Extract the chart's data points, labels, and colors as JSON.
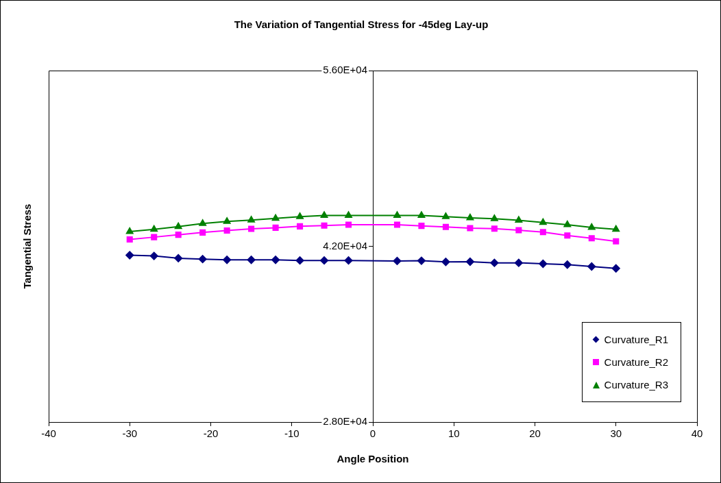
{
  "chart_data": {
    "type": "line",
    "title": "The Variation of Tangential Stress for -45deg Lay-up",
    "xlabel": "Angle Position",
    "ylabel": "Tangential Stress",
    "x": [
      -30,
      -27,
      -24,
      -21,
      -18,
      -15,
      -12,
      -9,
      -6,
      -3,
      3,
      6,
      9,
      12,
      15,
      18,
      21,
      24,
      27,
      30
    ],
    "xlim": [
      -40,
      40
    ],
    "xticks": [
      -40,
      -30,
      -20,
      -10,
      0,
      10,
      20,
      30,
      40
    ],
    "ylim": [
      28000,
      56000
    ],
    "yticks": [
      {
        "value": 28000,
        "label": "2.80E+04"
      },
      {
        "value": 42000,
        "label": "4.20E+04"
      },
      {
        "value": 56000,
        "label": "5.60E+04"
      }
    ],
    "grid": false,
    "legend": "bottom right",
    "line_style": "solid",
    "series": [
      {
        "name": "Curvature_R1",
        "color": "#000080",
        "marker": "diamond",
        "values": [
          41290,
          41230,
          41050,
          40980,
          40920,
          40920,
          40920,
          40870,
          40870,
          40870,
          40830,
          40850,
          40760,
          40770,
          40680,
          40680,
          40610,
          40540,
          40390,
          40240
        ]
      },
      {
        "name": "Curvature_R2",
        "color": "#ff00ff",
        "marker": "square",
        "values": [
          42550,
          42730,
          42920,
          43100,
          43260,
          43390,
          43480,
          43590,
          43650,
          43720,
          43720,
          43630,
          43540,
          43450,
          43410,
          43280,
          43130,
          42860,
          42640,
          42400
        ]
      },
      {
        "name": "Curvature_R3",
        "color": "#008000",
        "marker": "triangle",
        "values": [
          43170,
          43350,
          43570,
          43810,
          43980,
          44090,
          44230,
          44360,
          44450,
          44450,
          44450,
          44450,
          44360,
          44270,
          44200,
          44070,
          43900,
          43720,
          43500,
          43350
        ]
      }
    ]
  }
}
